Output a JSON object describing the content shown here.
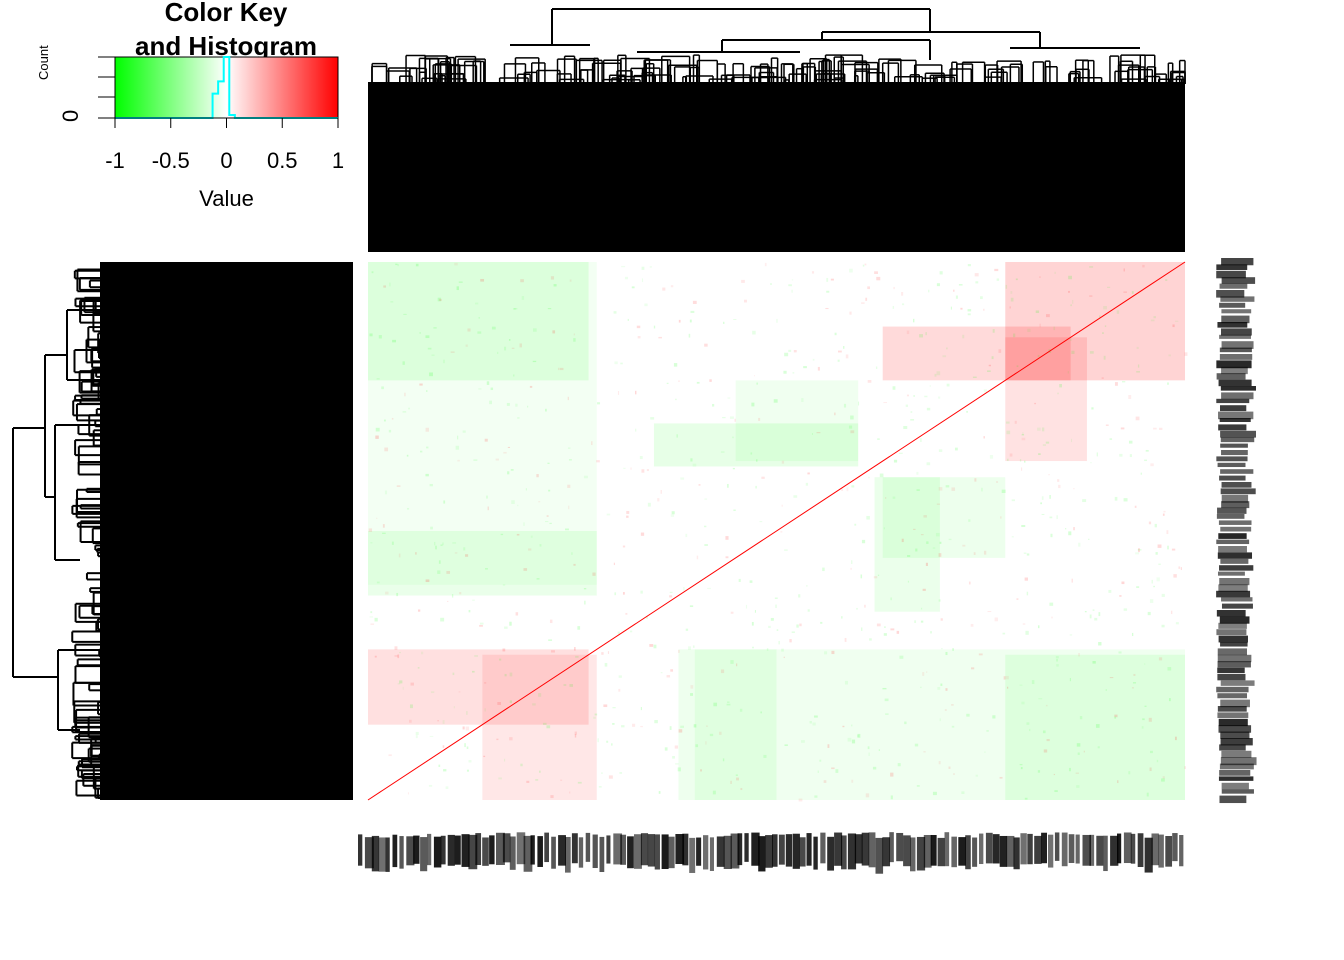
{
  "color_key": {
    "title_line1": "Color Key",
    "title_line2": "and Histogram",
    "x_label": "Value",
    "y_label": "Count",
    "y_tick": "0",
    "x_ticks": [
      "-1",
      "-0.5",
      "0",
      "0.5",
      "1"
    ],
    "low_color": "#00ff00",
    "mid_color": "#ffffff",
    "high_color": "#ff0000",
    "histogram_color": "#00ffff"
  },
  "chart_data": {
    "type": "heatmap",
    "description_type": "symmetric correlation heatmap with row and column dendrograms",
    "value_range": [
      -1,
      1
    ],
    "color_scale": [
      "#00ff00",
      "#ffffff",
      "#ff0000"
    ],
    "diagonal_value": 1,
    "histogram": {
      "x_range": [
        -1,
        1
      ],
      "bins_center": [
        -0.1,
        -0.05,
        0,
        0.05,
        0.1
      ],
      "relative_counts": [
        0.4,
        0.6,
        1.0,
        0.05,
        0.0
      ]
    },
    "blocks": [
      {
        "rows": [
          0.0,
          0.22
        ],
        "cols": [
          0.0,
          0.27
        ],
        "value": -0.08
      },
      {
        "rows": [
          0.0,
          0.22
        ],
        "cols": [
          0.78,
          1.0
        ],
        "value": 0.08
      },
      {
        "rows": [
          0.12,
          0.22
        ],
        "cols": [
          0.63,
          0.86
        ],
        "value": 0.12
      },
      {
        "rows": [
          0.3,
          0.38
        ],
        "cols": [
          0.35,
          0.6
        ],
        "value": -0.08
      },
      {
        "rows": [
          0.5,
          0.62
        ],
        "cols": [
          0.0,
          0.28
        ],
        "value": -0.07
      },
      {
        "rows": [
          0.72,
          0.86
        ],
        "cols": [
          0.0,
          0.27
        ],
        "value": 0.1
      },
      {
        "rows": [
          0.72,
          1.0
        ],
        "cols": [
          0.4,
          1.0
        ],
        "value": -0.05
      },
      {
        "rows": [
          0.4,
          0.55
        ],
        "cols": [
          0.63,
          0.78
        ],
        "value": -0.06
      }
    ]
  }
}
